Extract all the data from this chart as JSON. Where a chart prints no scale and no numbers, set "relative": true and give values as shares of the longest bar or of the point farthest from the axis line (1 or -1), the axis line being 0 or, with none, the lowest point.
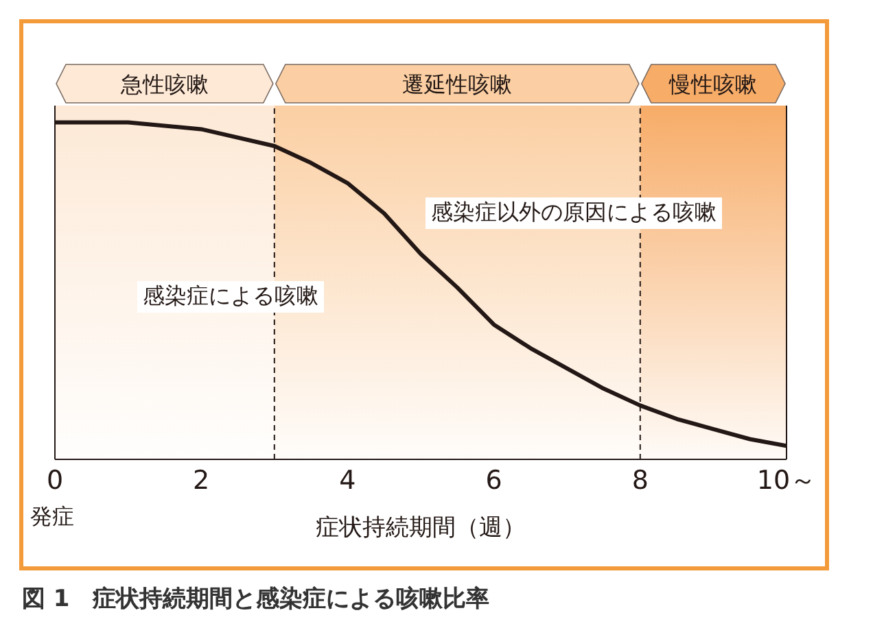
{
  "chart_data": {
    "type": "line",
    "title": "図 1　症状持続期間と感染症による咳嗽比率",
    "xlabel": "症状持続期間（週）",
    "relative": true,
    "x": [
      0,
      1,
      2,
      3,
      3.5,
      4,
      4.5,
      5,
      5.5,
      6,
      6.5,
      7,
      7.5,
      8,
      8.5,
      9,
      9.5,
      10
    ],
    "series": [
      {
        "color": "#231815",
        "values": [
          1,
          1,
          0.98,
          0.93,
          0.88,
          0.82,
          0.73,
          0.61,
          0.51,
          0.4,
          0.33,
          0.27,
          0.21,
          0.16,
          0.12,
          0.09,
          0.06,
          0.04
        ]
      }
    ],
    "xlim": [
      0,
      10
    ],
    "xticks": [
      0,
      2,
      4,
      6,
      8,
      {
        "value": 10,
        "label": "10～"
      }
    ],
    "bands": [
      {
        "axis": "x",
        "from": 0,
        "to": 3,
        "label": "急性咳嗽",
        "color": "#fde9d6"
      },
      {
        "axis": "x",
        "from": 3,
        "to": 8,
        "label": "遷延性咳嗽",
        "color": "#fbcfa3"
      },
      {
        "axis": "x",
        "from": 8,
        "to": 10,
        "label": "慢性咳嗽",
        "color": "#f7ac68"
      }
    ],
    "ref_lines": [
      {
        "axis": "x",
        "value": 3,
        "line_style": "dashed",
        "color": "#231815"
      },
      {
        "axis": "x",
        "value": 8,
        "line_style": "dashed",
        "color": "#231815"
      }
    ],
    "annotations": [
      "感染症による咳嗽",
      "感染症以外の原因による咳嗽",
      "発症"
    ],
    "grid": false,
    "legend": false,
    "marker": "none",
    "line_style": "solid"
  }
}
